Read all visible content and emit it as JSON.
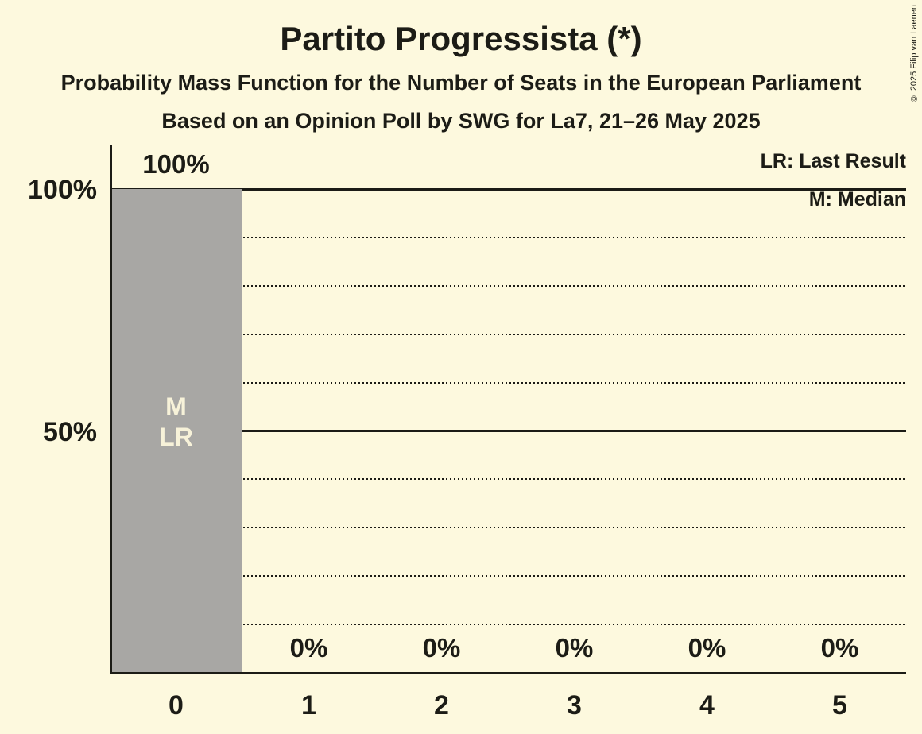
{
  "title": "Partito Progressista (*)",
  "subtitle": "Probability Mass Function for the Number of Seats in the European Parliament",
  "source_line": "Based on an Opinion Poll by SWG for La7, 21–26 May 2025",
  "copyright": "© 2025 Filip van Laenen",
  "legend": {
    "last_result": "LR: Last Result",
    "median": "M: Median"
  },
  "colors": {
    "background": "#FDF9DE",
    "bar": "#A8A7A4",
    "text": "#1C1C16",
    "bar_text": "#F7F2D9"
  },
  "chart_data": {
    "type": "bar",
    "title": "Partito Progressista (*)",
    "categories": [
      "0",
      "1",
      "2",
      "3",
      "4",
      "5"
    ],
    "values": [
      100,
      0,
      0,
      0,
      0,
      0
    ],
    "value_labels": [
      "100%",
      "0%",
      "0%",
      "0%",
      "0%",
      "0%"
    ],
    "xlabel": "",
    "ylabel": "",
    "ylim": [
      0,
      100
    ],
    "yticks": [
      {
        "value": 100,
        "label": "100%"
      },
      {
        "value": 50,
        "label": "50%"
      }
    ],
    "gridlines": {
      "solid": [
        100,
        50
      ],
      "dotted": [
        90,
        80,
        70,
        60,
        40,
        30,
        20,
        10
      ]
    },
    "grid": "horizontal-only",
    "legend_position": "top-right",
    "annotations": [
      {
        "category": "0",
        "lines": [
          "M",
          "LR"
        ]
      }
    ]
  }
}
